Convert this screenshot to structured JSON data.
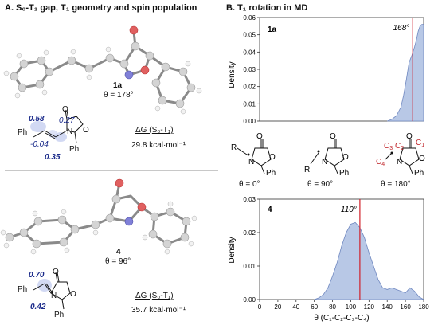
{
  "panelA": {
    "title": "A. S₀-T₁ gap, T₁ geometry and spin population",
    "mol1": {
      "id": "1a",
      "theta": "θ = 178°",
      "spin": [
        "0.58",
        "0.27",
        "-0.04",
        "0.35"
      ],
      "dg_label": "ΔG (S₀-T₁)",
      "dg_value": "29.8 kcal·mol⁻¹",
      "ph_top": "Ph",
      "ph_bottom": "Ph",
      "o_exo": "O",
      "o_ring": "O",
      "n_ring": "N"
    },
    "mol4": {
      "id": "4",
      "theta": "θ = 96°",
      "spin": [
        "0.70",
        "0.42"
      ],
      "dg_label": "ΔG (S₀-T₁)",
      "dg_value": "35.7 kcal·mol⁻¹",
      "ph_top": "Ph",
      "ph_bottom": "Ph",
      "o_exo": "O",
      "o_ring": "O",
      "n_ring": "N"
    }
  },
  "panelB": {
    "title": "B. T₁ rotation in MD",
    "conformers": [
      {
        "theta": "θ = 0°"
      },
      {
        "theta": "θ = 90°"
      },
      {
        "theta": "θ = 180°"
      }
    ],
    "atom_labels": {
      "R": "R",
      "Ph": "Ph",
      "O": "O",
      "N": "N",
      "C1": "C",
      "C2": "C",
      "C3": "C",
      "C4": "C",
      "s1": "1",
      "s2": "2",
      "s3": "3",
      "s4": "4"
    }
  },
  "chart_data": [
    {
      "type": "area",
      "panel": "1a",
      "ylabel": "Density",
      "ylim": [
        0,
        0.06
      ],
      "xlim": [
        0,
        180
      ],
      "yticks": [
        "0.00",
        "0.01",
        "0.02",
        "0.03",
        "0.04",
        "0.05",
        "0.06"
      ],
      "x": [
        140,
        145,
        150,
        155,
        158,
        161,
        164,
        167,
        170,
        172,
        174,
        176,
        178,
        180
      ],
      "y": [
        0.0,
        0.001,
        0.003,
        0.008,
        0.015,
        0.024,
        0.034,
        0.038,
        0.043,
        0.047,
        0.052,
        0.055,
        0.056,
        0.056
      ],
      "marker_line": 168,
      "marker_label": "168°",
      "color": "#b8c8e6"
    },
    {
      "type": "area",
      "panel": "4",
      "ylabel": "Density",
      "xlabel": "θ (C₁-C₂-C₃-C₄)",
      "ylim": [
        0,
        0.03
      ],
      "xlim": [
        0,
        180
      ],
      "yticks": [
        "0.00",
        "0.01",
        "0.02",
        "0.03"
      ],
      "xticks": [
        "0",
        "20",
        "40",
        "60",
        "80",
        "100",
        "120",
        "140",
        "160",
        "180"
      ],
      "x": [
        60,
        65,
        70,
        75,
        80,
        85,
        90,
        95,
        100,
        105,
        110,
        115,
        120,
        125,
        130,
        135,
        140,
        145,
        150,
        155,
        160,
        165,
        170,
        175,
        180
      ],
      "y": [
        0.0,
        0.0005,
        0.0015,
        0.0035,
        0.007,
        0.011,
        0.016,
        0.02,
        0.0225,
        0.023,
        0.0215,
        0.0185,
        0.014,
        0.01,
        0.006,
        0.0035,
        0.003,
        0.0035,
        0.003,
        0.0025,
        0.002,
        0.0035,
        0.0025,
        0.0008,
        0.0
      ],
      "marker_line": 110,
      "marker_label": "110°",
      "color": "#b8c8e6"
    }
  ]
}
